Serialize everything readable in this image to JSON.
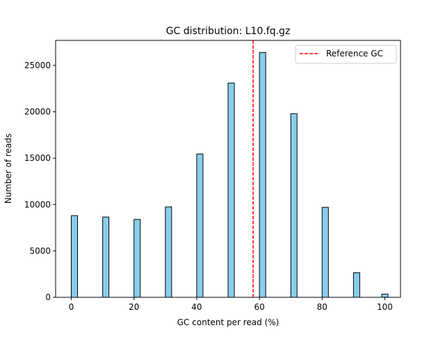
{
  "chart_data": {
    "type": "bar",
    "title": "GC distribution: L10.fq.gz",
    "xlabel": "GC content per read (%)",
    "ylabel": "Number of reads",
    "x": [
      1,
      11,
      21,
      31,
      41,
      51,
      61,
      71,
      81,
      91,
      100
    ],
    "values": [
      8800,
      8650,
      8400,
      9750,
      15450,
      23100,
      26400,
      19800,
      9700,
      2650,
      350
    ],
    "bar_width": 2,
    "xlim": [
      -5,
      105
    ],
    "ylim": [
      0,
      27700
    ],
    "xticks": [
      0,
      20,
      40,
      60,
      80,
      100
    ],
    "xtick_labels": [
      "0",
      "20",
      "40",
      "60",
      "80",
      "100"
    ],
    "yticks": [
      0,
      5000,
      10000,
      15000,
      20000,
      25000
    ],
    "ytick_labels": [
      "0",
      "5000",
      "10000",
      "15000",
      "20000",
      "25000"
    ],
    "reference_line": {
      "x": 58,
      "label": "Reference GC",
      "color": "#ff0000",
      "style": "dashed"
    },
    "bar_color": "#87ceeb",
    "bar_edge_color": "#000000",
    "legend": {
      "position": "top-right",
      "entries": [
        "Reference GC"
      ]
    },
    "grid": false
  }
}
